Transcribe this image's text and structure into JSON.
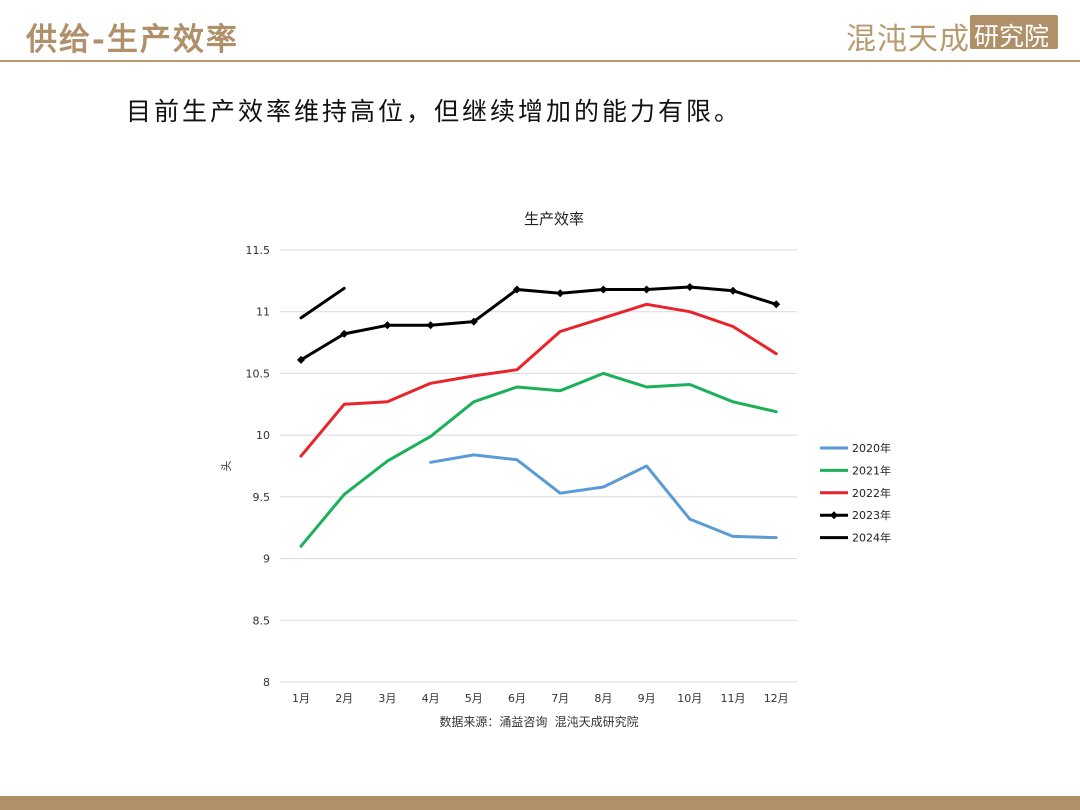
{
  "header": {
    "title": "供给-生产效率",
    "logo_text": "混沌天成",
    "logo_box_text": "研究院"
  },
  "subtitle": "目前生产效率维持高位，但继续增加的能力有限。",
  "colors": {
    "accent": "#b89a70",
    "s2020": "#5b9bd5",
    "s2021": "#1db05a",
    "s2022": "#e8242a",
    "s2023": "#000000",
    "s2024": "#000000"
  },
  "chart_data": {
    "type": "line",
    "title": "生产效率",
    "xlabel": "",
    "ylabel": "头",
    "ylim": [
      8,
      11.5
    ],
    "yticks": [
      8,
      8.5,
      9,
      9.5,
      10,
      10.5,
      11,
      11.5
    ],
    "ytick_labels": [
      "8",
      "8.5",
      "9",
      "9.5",
      "10",
      "10.5",
      "11",
      "11.5"
    ],
    "categories": [
      "1月",
      "2月",
      "3月",
      "4月",
      "5月",
      "6月",
      "7月",
      "8月",
      "9月",
      "10月",
      "11月",
      "12月"
    ],
    "grid": true,
    "legend_position": "right",
    "series": [
      {
        "name": "2020年",
        "color_key": "s2020",
        "markers": false,
        "values": [
          null,
          null,
          null,
          9.78,
          9.84,
          9.8,
          9.53,
          9.58,
          9.75,
          9.32,
          9.18,
          9.17
        ]
      },
      {
        "name": "2021年",
        "color_key": "s2021",
        "markers": false,
        "values": [
          9.1,
          9.52,
          9.79,
          9.99,
          10.27,
          10.39,
          10.36,
          10.5,
          10.39,
          10.41,
          10.27,
          10.19
        ]
      },
      {
        "name": "2022年",
        "color_key": "s2022",
        "markers": false,
        "values": [
          9.83,
          10.25,
          10.27,
          10.42,
          10.48,
          10.53,
          10.84,
          10.95,
          11.06,
          11.0,
          10.88,
          10.66
        ]
      },
      {
        "name": "2023年",
        "color_key": "s2023",
        "markers": true,
        "values": [
          10.61,
          10.82,
          10.89,
          10.89,
          10.92,
          11.18,
          11.15,
          11.18,
          11.18,
          11.2,
          11.17,
          11.06
        ]
      },
      {
        "name": "2024年",
        "color_key": "s2024",
        "markers": false,
        "values": [
          10.95,
          11.19,
          null,
          null,
          null,
          null,
          null,
          null,
          null,
          null,
          null,
          null
        ]
      }
    ],
    "source": "数据来源：涌益咨询 混沌天成研究院"
  }
}
